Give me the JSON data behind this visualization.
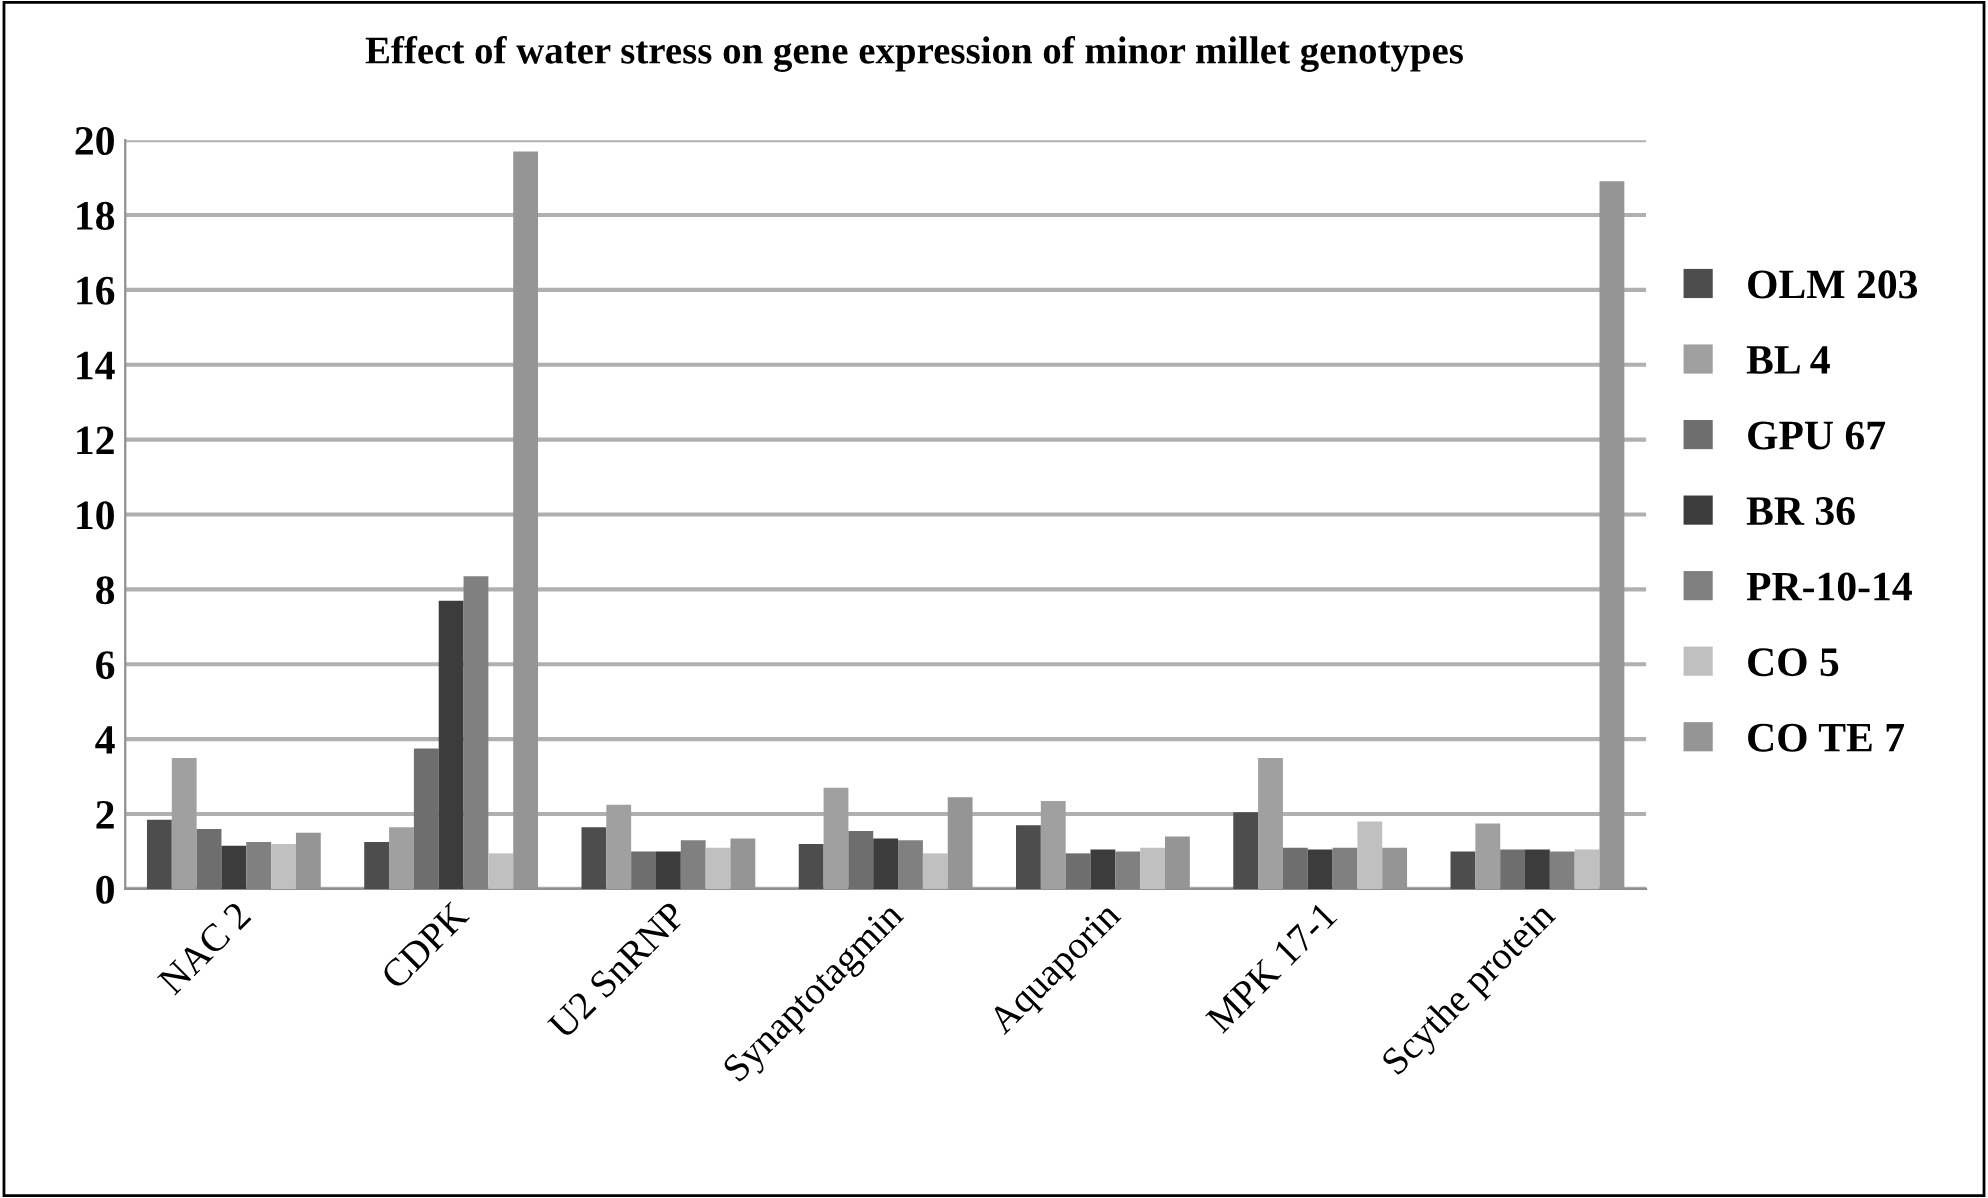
{
  "chart_data": {
    "type": "bar",
    "title": "Effect of water stress on gene expression of minor millet genotypes",
    "categories": [
      "NAC 2",
      "CDPK",
      "U2 SnRNP",
      "Synaptotagmin",
      "Aquaporin",
      "MPK 17-1",
      "Scythe protein"
    ],
    "series": [
      {
        "name": "OLM 203",
        "color": "#4d4d4d",
        "values": [
          1.85,
          1.25,
          1.65,
          1.2,
          1.7,
          2.05,
          1.0
        ]
      },
      {
        "name": "BL 4",
        "color": "#a0a0a0",
        "values": [
          3.5,
          1.65,
          2.25,
          2.7,
          2.35,
          3.5,
          1.75
        ]
      },
      {
        "name": "GPU 67",
        "color": "#6e6e6e",
        "values": [
          1.6,
          3.75,
          1.0,
          1.55,
          0.95,
          1.1,
          1.05
        ]
      },
      {
        "name": "BR 36",
        "color": "#3c3c3c",
        "values": [
          1.15,
          7.7,
          1.0,
          1.35,
          1.05,
          1.05,
          1.05
        ]
      },
      {
        "name": "PR-10-14",
        "color": "#808080",
        "values": [
          1.25,
          8.35,
          1.3,
          1.3,
          1.0,
          1.1,
          1.0
        ]
      },
      {
        "name": "CO 5",
        "color": "#c0c0c0",
        "values": [
          1.2,
          0.95,
          1.1,
          0.95,
          1.1,
          1.8,
          1.05
        ]
      },
      {
        "name": "CO TE 7",
        "color": "#959595",
        "values": [
          1.5,
          19.7,
          1.35,
          2.45,
          1.4,
          1.1,
          18.9
        ]
      }
    ],
    "ylim": [
      0,
      20
    ],
    "yticks": [
      0,
      2,
      4,
      6,
      8,
      10,
      12,
      14,
      16,
      18,
      20
    ],
    "grid": "y",
    "legend": "right"
  }
}
